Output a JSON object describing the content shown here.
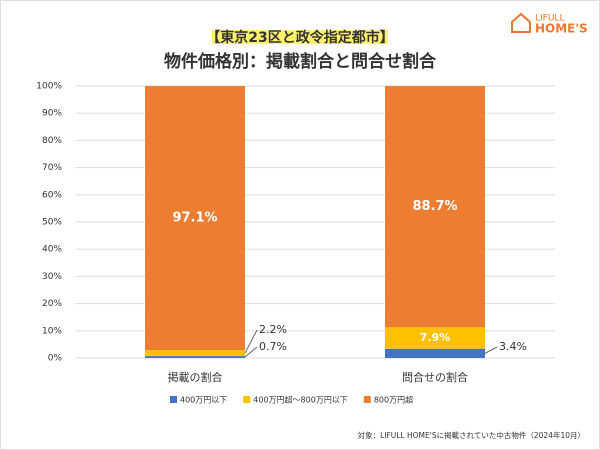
{
  "chart_data": {
    "type": "stacked_bar",
    "header": "【東京23区と政令指定都市】",
    "title": "物件価格別：掲載割合と問合せ割合",
    "brand": {
      "top": "LIFULL",
      "bottom": "HOME'S"
    },
    "categories": [
      "掲載の割合",
      "問合せの割合"
    ],
    "series": [
      {
        "name": "400万円以下",
        "color": "#4472c4",
        "values": [
          0.7,
          3.4
        ],
        "value_labels": [
          "0.7%",
          "3.4%"
        ]
      },
      {
        "name": "400万円超～800万円以下",
        "color": "#ffc000",
        "values": [
          2.2,
          7.9
        ],
        "value_labels": [
          "2.2%",
          "7.9%"
        ]
      },
      {
        "name": "800万円超",
        "color": "#ed7d31",
        "values": [
          97.1,
          88.7
        ],
        "value_labels": [
          "97.1%",
          "88.7%"
        ]
      }
    ],
    "ylim": [
      0,
      100
    ],
    "yticks": [
      {
        "value": 0,
        "label": "0%"
      },
      {
        "value": 10,
        "label": "10%"
      },
      {
        "value": 20,
        "label": "20%"
      },
      {
        "value": 30,
        "label": "30%"
      },
      {
        "value": 40,
        "label": "40%"
      },
      {
        "value": 50,
        "label": "50%"
      },
      {
        "value": 60,
        "label": "60%"
      },
      {
        "value": 70,
        "label": "70%"
      },
      {
        "value": 80,
        "label": "80%"
      },
      {
        "value": 90,
        "label": "90%"
      },
      {
        "value": 100,
        "label": "100%"
      }
    ],
    "grid": true,
    "legend": "bottom",
    "footnote": "対象：LIFULL HOME'Sに掲載されていた中古物件（2024年10月）"
  }
}
